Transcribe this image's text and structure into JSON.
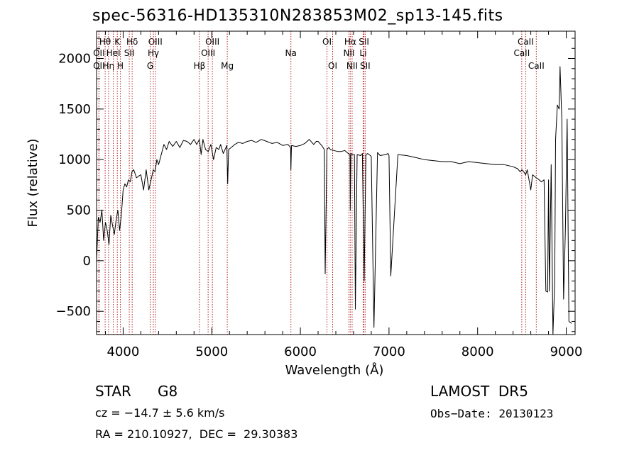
{
  "chart_data": {
    "type": "line",
    "title": "spec-56316-HD135310N283853M02_sp13-145.fits",
    "xlabel": "Wavelength (Å)",
    "ylabel": "Flux (relative)",
    "xlim": [
      3700,
      9100
    ],
    "ylim": [
      -730,
      2270
    ],
    "xticks": [
      4000,
      5000,
      6000,
      7000,
      8000,
      9000
    ],
    "yticks": [
      -500,
      0,
      500,
      1000,
      1500,
      2000
    ],
    "grid": false,
    "colors": {
      "spectrum": "#000000",
      "lines": "#b22222",
      "frame": "#000000"
    },
    "series": [
      {
        "x": [
          3700,
          3720,
          3740,
          3760,
          3780,
          3800,
          3820,
          3840,
          3860,
          3880,
          3900,
          3920,
          3940,
          3960,
          3980,
          4000,
          4020,
          4040,
          4060,
          4080,
          4100,
          4120,
          4150,
          4180,
          4200,
          4230,
          4260,
          4290,
          4320,
          4340,
          4360,
          4380,
          4400,
          4430,
          4460,
          4490,
          4520,
          4560,
          4600,
          4640,
          4680,
          4720,
          4760,
          4800,
          4830,
          4860,
          4880,
          4900,
          4930,
          4960,
          4990,
          5020,
          5050,
          5080,
          5100,
          5130,
          5170,
          5180,
          5190,
          5220,
          5260,
          5300,
          5350,
          5400,
          5450,
          5500,
          5560,
          5620,
          5680,
          5740,
          5800,
          5860,
          5890,
          5893,
          5900,
          5950,
          6000,
          6050,
          6100,
          6150,
          6180,
          6200,
          6240,
          6270,
          6280,
          6300,
          6320,
          6340,
          6380,
          6420,
          6460,
          6500,
          6540,
          6560,
          6563,
          6570,
          6590,
          6610,
          6620,
          6640,
          6680,
          6700,
          6720,
          6740,
          6760,
          6790,
          6800,
          6830,
          6870,
          6900,
          6960,
          6990,
          7000,
          7020,
          7100,
          7200,
          7300,
          7400,
          7500,
          7600,
          7700,
          7800,
          7900,
          8000,
          8100,
          8200,
          8300,
          8400,
          8450,
          8480,
          8500,
          8520,
          8542,
          8560,
          8600,
          8620,
          8662,
          8680,
          8720,
          8750,
          8770,
          8790,
          8800,
          8810,
          8830,
          8850,
          8870,
          8880,
          8900,
          8920,
          8930,
          8950,
          8970,
          8990,
          9010,
          9030,
          9060
        ],
        "y": [
          0,
          430,
          380,
          500,
          200,
          380,
          300,
          160,
          450,
          350,
          260,
          400,
          500,
          300,
          450,
          700,
          760,
          730,
          800,
          780,
          880,
          900,
          820,
          840,
          850,
          700,
          900,
          700,
          820,
          900,
          880,
          1000,
          950,
          1050,
          1150,
          1100,
          1180,
          1130,
          1180,
          1120,
          1190,
          1180,
          1150,
          1200,
          1150,
          1200,
          1050,
          1200,
          1100,
          1080,
          1150,
          1000,
          1120,
          1100,
          1150,
          1060,
          1140,
          760,
          1100,
          1120,
          1150,
          1170,
          1160,
          1180,
          1190,
          1170,
          1200,
          1180,
          1160,
          1170,
          1140,
          1150,
          1120,
          900,
          1140,
          1130,
          1140,
          1160,
          1200,
          1150,
          1180,
          1180,
          1140,
          1100,
          -130,
          1100,
          1120,
          1100,
          1090,
          1080,
          1080,
          1090,
          1060,
          1050,
          500,
          1060,
          1050,
          1050,
          -480,
          1050,
          1040,
          1060,
          -200,
          1050,
          1060,
          1040,
          1030,
          -660,
          1070,
          1040,
          1050,
          1060,
          1040,
          -150,
          1050,
          1040,
          1020,
          1000,
          990,
          980,
          980,
          960,
          980,
          970,
          960,
          950,
          950,
          930,
          910,
          880,
          900,
          880,
          850,
          900,
          700,
          850,
          820,
          810,
          780,
          800,
          -300,
          -310,
          800,
          -300,
          950,
          -730,
          -200,
          1200,
          1540,
          1500,
          1920,
          1400,
          -380,
          300,
          1400,
          -600,
          -620
        ]
      }
    ],
    "line_markers": [
      {
        "label": "Hθ",
        "x": 3797,
        "row": 1
      },
      {
        "label": "OII",
        "x": 3727,
        "row": 2
      },
      {
        "label": "OII",
        "x": 3727,
        "row": 3
      },
      {
        "label": "Hη",
        "x": 3835,
        "row": 3
      },
      {
        "label": "HeI",
        "x": 3889,
        "row": 2
      },
      {
        "label": "K",
        "x": 3934,
        "row": 1
      },
      {
        "label": "H",
        "x": 3969,
        "row": 3
      },
      {
        "label": "Hδ",
        "x": 4102,
        "row": 1
      },
      {
        "label": "SII",
        "x": 4069,
        "row": 2
      },
      {
        "label": "OIII",
        "x": 4363,
        "row": 1
      },
      {
        "label": "Hγ",
        "x": 4341,
        "row": 2
      },
      {
        "label": "G",
        "x": 4305,
        "row": 3
      },
      {
        "label": "OIII",
        "x": 5007,
        "row": 1
      },
      {
        "label": "OIII",
        "x": 4959,
        "row": 2
      },
      {
        "label": "Hβ",
        "x": 4861,
        "row": 3
      },
      {
        "label": "Mg",
        "x": 5175,
        "row": 3
      },
      {
        "label": "Na",
        "x": 5893,
        "row": 2
      },
      {
        "label": "OI",
        "x": 6300,
        "row": 1
      },
      {
        "label": "OI",
        "x": 6364,
        "row": 3
      },
      {
        "label": "Hα",
        "x": 6563,
        "row": 1
      },
      {
        "label": "NII",
        "x": 6548,
        "row": 2
      },
      {
        "label": "NII",
        "x": 6584,
        "row": 3
      },
      {
        "label": "SII",
        "x": 6717,
        "row": 1
      },
      {
        "label": "Li",
        "x": 6708,
        "row": 2
      },
      {
        "label": "SII",
        "x": 6731,
        "row": 3
      },
      {
        "label": "CaII",
        "x": 8542,
        "row": 1
      },
      {
        "label": "CaII",
        "x": 8498,
        "row": 2
      },
      {
        "label": "CaII",
        "x": 8662,
        "row": 3
      }
    ]
  },
  "info": {
    "object_class": "STAR",
    "subclass": "G8",
    "survey": "LAMOST  DR5",
    "redshift_text": "cz = −14.7 ± 5.6 km/s",
    "obs_date": "Obs−Date: 20130123",
    "coords": "RA = 210.10927,  DEC =  29.30383"
  }
}
